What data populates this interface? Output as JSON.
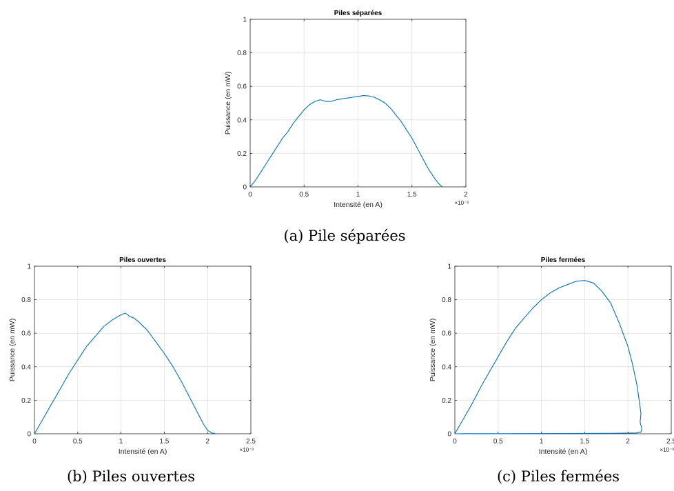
{
  "figures": [
    {
      "caption": "(a) Pile séparées",
      "chart_data": {
        "type": "line",
        "title": "Piles séparées",
        "xlabel": "Intensité (en A)",
        "ylabel": "Puissance (en mW)",
        "x_multiplier_label": "×10⁻³",
        "xlim": [
          0,
          2
        ],
        "ylim": [
          0,
          1
        ],
        "xticks": [
          0,
          0.5,
          1,
          1.5,
          2
        ],
        "xtick_labels": [
          "0",
          "0.5",
          "1",
          "1.5",
          "2"
        ],
        "yticks": [
          0,
          0.2,
          0.4,
          0.6,
          0.8,
          1
        ],
        "ytick_labels": [
          "0",
          "0.2",
          "0.4",
          "0.6",
          "0.8",
          "1"
        ],
        "grid": true,
        "line_color": "#0072bd",
        "series": [
          {
            "x": [
              0,
              0.05,
              0.1,
              0.15,
              0.2,
              0.25,
              0.3,
              0.35,
              0.4,
              0.45,
              0.5,
              0.55,
              0.6,
              0.65,
              0.7,
              0.75,
              0.8,
              0.85,
              0.9,
              0.95,
              1.0,
              1.05,
              1.1,
              1.15,
              1.2,
              1.25,
              1.3,
              1.35,
              1.4,
              1.45,
              1.5,
              1.55,
              1.6,
              1.65,
              1.7,
              1.74,
              1.78
            ],
            "y": [
              0,
              0.04,
              0.09,
              0.14,
              0.19,
              0.24,
              0.29,
              0.33,
              0.38,
              0.42,
              0.46,
              0.49,
              0.51,
              0.52,
              0.51,
              0.51,
              0.52,
              0.525,
              0.53,
              0.535,
              0.54,
              0.545,
              0.543,
              0.535,
              0.52,
              0.5,
              0.47,
              0.43,
              0.39,
              0.34,
              0.29,
              0.23,
              0.17,
              0.11,
              0.06,
              0.025,
              0
            ]
          }
        ]
      }
    },
    {
      "caption": "(b) Piles ouvertes",
      "chart_data": {
        "type": "line",
        "title": "Piles ouvertes",
        "xlabel": "Intensité (en A)",
        "ylabel": "Puissance (en mW)",
        "x_multiplier_label": "×10⁻³",
        "xlim": [
          0,
          2.5
        ],
        "ylim": [
          0,
          1
        ],
        "xticks": [
          0,
          0.5,
          1,
          1.5,
          2,
          2.5
        ],
        "xtick_labels": [
          "0",
          "0.5",
          "1",
          "1.5",
          "2",
          "2.5"
        ],
        "yticks": [
          0,
          0.2,
          0.4,
          0.6,
          0.8,
          1
        ],
        "ytick_labels": [
          "0",
          "0.2",
          "0.4",
          "0.6",
          "0.8",
          "1"
        ],
        "grid": true,
        "line_color": "#0072bd",
        "series": [
          {
            "x": [
              0,
              0.1,
              0.2,
              0.3,
              0.4,
              0.5,
              0.6,
              0.7,
              0.8,
              0.9,
              1.0,
              1.05,
              1.1,
              1.15,
              1.2,
              1.3,
              1.4,
              1.5,
              1.6,
              1.7,
              1.8,
              1.9,
              1.95,
              2.0,
              2.05,
              2.1
            ],
            "y": [
              0,
              0.09,
              0.18,
              0.27,
              0.36,
              0.44,
              0.52,
              0.58,
              0.64,
              0.68,
              0.71,
              0.72,
              0.7,
              0.69,
              0.67,
              0.62,
              0.55,
              0.48,
              0.4,
              0.31,
              0.21,
              0.11,
              0.06,
              0.02,
              0.005,
              0
            ]
          }
        ]
      }
    },
    {
      "caption": "(c) Piles fermées",
      "chart_data": {
        "type": "line",
        "title": "Piles fermées",
        "xlabel": "Intensité (en A)",
        "ylabel": "Puissance (en mW)",
        "x_multiplier_label": "×10⁻³",
        "xlim": [
          0,
          2.5
        ],
        "ylim": [
          0,
          1
        ],
        "xticks": [
          0,
          0.5,
          1,
          1.5,
          2,
          2.5
        ],
        "xtick_labels": [
          "0",
          "0.5",
          "1",
          "1.5",
          "2",
          "2.5"
        ],
        "yticks": [
          0,
          0.2,
          0.4,
          0.6,
          0.8,
          1
        ],
        "ytick_labels": [
          "0",
          "0.2",
          "0.4",
          "0.6",
          "0.8",
          "1"
        ],
        "grid": true,
        "line_color": "#0072bd",
        "series": [
          {
            "x": [
              0,
              0.1,
              0.2,
              0.3,
              0.4,
              0.5,
              0.6,
              0.7,
              0.8,
              0.9,
              1.0,
              1.1,
              1.2,
              1.3,
              1.4,
              1.5,
              1.6,
              1.7,
              1.8,
              1.9,
              2.0,
              2.05,
              2.1,
              2.13,
              2.15,
              2.14,
              2.16,
              2.15,
              2.1,
              1.8,
              1.2,
              0.6,
              0.1,
              0
            ],
            "y": [
              0,
              0.09,
              0.18,
              0.28,
              0.37,
              0.46,
              0.55,
              0.63,
              0.69,
              0.75,
              0.8,
              0.84,
              0.87,
              0.89,
              0.91,
              0.915,
              0.9,
              0.85,
              0.78,
              0.66,
              0.52,
              0.42,
              0.3,
              0.2,
              0.12,
              0.07,
              0.03,
              0.01,
              0.005,
              0.003,
              0.002,
              0.001,
              0.001,
              0
            ]
          }
        ]
      }
    }
  ]
}
